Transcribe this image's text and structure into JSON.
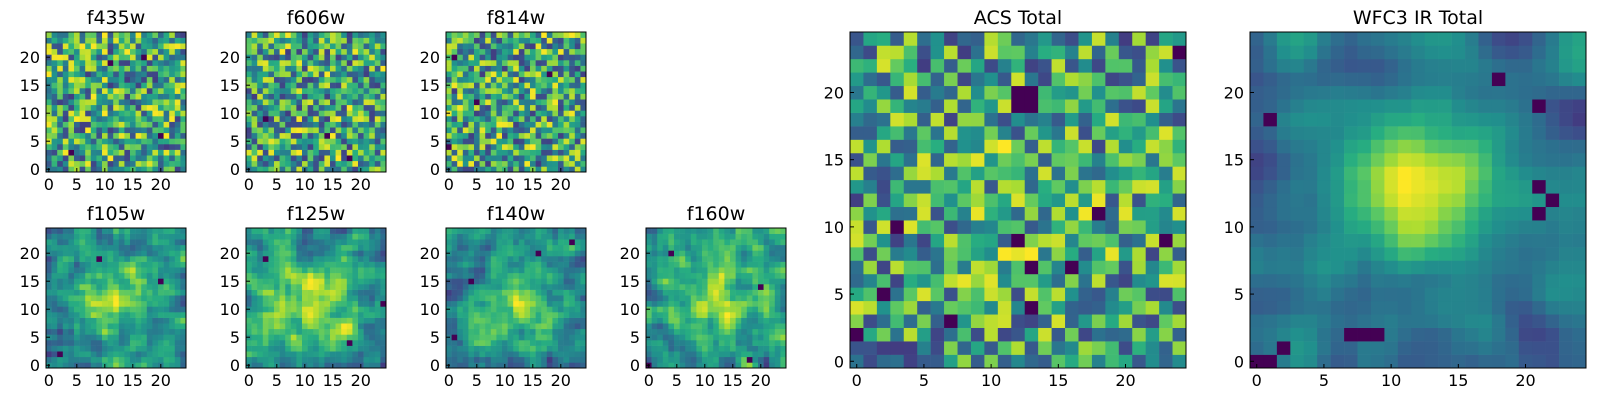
{
  "figure": {
    "colormap": "viridis",
    "colormap_stops": [
      "#440154",
      "#472c7a",
      "#3b518b",
      "#2c718e",
      "#21908d",
      "#27ad81",
      "#5cc863",
      "#aadc32",
      "#fde725"
    ]
  },
  "chart_data": [
    {
      "type": "heatmap",
      "id": "f435w",
      "title": "f435w",
      "size": 25,
      "xticks": [
        "0",
        "5",
        "10",
        "15",
        "20"
      ],
      "yticks": [
        "0",
        "5",
        "10",
        "15",
        "20"
      ],
      "xlim": [
        -0.5,
        24.5
      ],
      "ylim": [
        -0.5,
        24.5
      ],
      "structure": "noise",
      "seed": 11,
      "peak": [
        12,
        12
      ],
      "sigma": 6,
      "amplitude": 0.0,
      "dark_pixels": [
        [
          11,
          19
        ],
        [
          17,
          20
        ],
        [
          4,
          3
        ],
        [
          20,
          6
        ]
      ]
    },
    {
      "type": "heatmap",
      "id": "f606w",
      "title": "f606w",
      "size": 25,
      "xticks": [
        "0",
        "5",
        "10",
        "15",
        "20"
      ],
      "yticks": [
        "0",
        "5",
        "10",
        "15",
        "20"
      ],
      "xlim": [
        -0.5,
        24.5
      ],
      "ylim": [
        -0.5,
        24.5
      ],
      "structure": "noise",
      "seed": 23,
      "peak": [
        12,
        12
      ],
      "sigma": 6,
      "amplitude": 0.0,
      "dark_pixels": [
        [
          14,
          6
        ],
        [
          3,
          9
        ],
        [
          18,
          2
        ]
      ]
    },
    {
      "type": "heatmap",
      "id": "f814w",
      "title": "f814w",
      "size": 25,
      "xticks": [
        "0",
        "5",
        "10",
        "15",
        "20"
      ],
      "yticks": [
        "0",
        "5",
        "10",
        "15",
        "20"
      ],
      "xlim": [
        -0.5,
        24.5
      ],
      "ylim": [
        -0.5,
        24.5
      ],
      "structure": "noise",
      "seed": 37,
      "peak": [
        12,
        12
      ],
      "sigma": 6,
      "amplitude": 0.0,
      "dark_pixels": [
        [
          5,
          12
        ],
        [
          1,
          20
        ],
        [
          18,
          17
        ],
        [
          0,
          4
        ]
      ]
    },
    {
      "type": "heatmap",
      "id": "f105w",
      "title": "f105w",
      "size": 25,
      "xticks": [
        "0",
        "5",
        "10",
        "15",
        "20"
      ],
      "yticks": [
        "0",
        "5",
        "10",
        "15",
        "20"
      ],
      "xlim": [
        -0.5,
        24.5
      ],
      "ylim": [
        -0.5,
        24.5
      ],
      "structure": "source",
      "seed": 41,
      "peak": [
        12,
        12
      ],
      "sigma": 5,
      "amplitude": 0.35,
      "dark_pixels": [
        [
          9,
          19
        ],
        [
          20,
          15
        ],
        [
          2,
          2
        ]
      ]
    },
    {
      "type": "heatmap",
      "id": "f125w",
      "title": "f125w",
      "size": 25,
      "xticks": [
        "0",
        "5",
        "10",
        "15",
        "20"
      ],
      "yticks": [
        "0",
        "5",
        "10",
        "15",
        "20"
      ],
      "xlim": [
        -0.5,
        24.5
      ],
      "ylim": [
        -0.5,
        24.5
      ],
      "structure": "source",
      "seed": 53,
      "peak": [
        12,
        11
      ],
      "sigma": 5,
      "amplitude": 0.3,
      "dark_pixels": [
        [
          24,
          11
        ],
        [
          18,
          4
        ],
        [
          3,
          19
        ]
      ]
    },
    {
      "type": "heatmap",
      "id": "f140w",
      "title": "f140w",
      "size": 25,
      "xticks": [
        "0",
        "5",
        "10",
        "15",
        "20"
      ],
      "yticks": [
        "0",
        "5",
        "10",
        "15",
        "20"
      ],
      "xlim": [
        -0.5,
        24.5
      ],
      "ylim": [
        -0.5,
        24.5
      ],
      "structure": "source",
      "seed": 67,
      "peak": [
        12,
        11
      ],
      "sigma": 5,
      "amplitude": 0.3,
      "dark_pixels": [
        [
          22,
          22
        ],
        [
          1,
          5
        ],
        [
          16,
          20
        ],
        [
          4,
          15
        ]
      ]
    },
    {
      "type": "heatmap",
      "id": "f160w",
      "title": "f160w",
      "size": 25,
      "xticks": [
        "0",
        "5",
        "10",
        "15",
        "20"
      ],
      "yticks": [
        "0",
        "5",
        "10",
        "15",
        "20"
      ],
      "xlim": [
        -0.5,
        24.5
      ],
      "ylim": [
        -0.5,
        24.5
      ],
      "structure": "source",
      "seed": 79,
      "peak": [
        12,
        12
      ],
      "sigma": 5,
      "amplitude": 0.3,
      "dark_pixels": [
        [
          0,
          0
        ],
        [
          20,
          14
        ],
        [
          4,
          20
        ],
        [
          18,
          1
        ]
      ]
    },
    {
      "type": "heatmap",
      "id": "acs-total",
      "title": "ACS Total",
      "size": 25,
      "xticks": [
        "0",
        "5",
        "10",
        "15",
        "20"
      ],
      "yticks": [
        "0",
        "5",
        "10",
        "15",
        "20"
      ],
      "xlim": [
        -0.5,
        24.5
      ],
      "ylim": [
        -0.5,
        24.5
      ],
      "structure": "noise",
      "seed": 97,
      "peak": [
        12,
        12
      ],
      "sigma": 6,
      "amplitude": 0.1,
      "dark_pixels": [
        [
          12,
          20
        ],
        [
          13,
          20
        ],
        [
          12,
          19
        ],
        [
          13,
          19
        ],
        [
          24,
          23
        ],
        [
          18,
          11
        ],
        [
          23,
          9
        ],
        [
          12,
          9
        ],
        [
          13,
          7
        ],
        [
          16,
          7
        ],
        [
          2,
          5
        ],
        [
          7,
          3
        ],
        [
          13,
          4
        ],
        [
          3,
          10
        ],
        [
          0,
          2
        ]
      ]
    },
    {
      "type": "heatmap",
      "id": "wfc3-ir-total",
      "title": "WFC3 IR Total",
      "size": 25,
      "xticks": [
        "0",
        "5",
        "10",
        "15",
        "20"
      ],
      "yticks": [
        "0",
        "5",
        "10",
        "15",
        "20"
      ],
      "xlim": [
        -0.5,
        24.5
      ],
      "ylim": [
        -0.5,
        24.5
      ],
      "structure": "smooth",
      "seed": 113,
      "peak": [
        12,
        13
      ],
      "sigma": 4,
      "amplitude": 0.55,
      "dark_pixels": [
        [
          21,
          13
        ],
        [
          22,
          12
        ],
        [
          21,
          11
        ],
        [
          21,
          19
        ],
        [
          18,
          21
        ],
        [
          0,
          0
        ],
        [
          1,
          0
        ],
        [
          2,
          1
        ],
        [
          7,
          2
        ],
        [
          8,
          2
        ],
        [
          9,
          2
        ],
        [
          1,
          18
        ]
      ]
    }
  ]
}
